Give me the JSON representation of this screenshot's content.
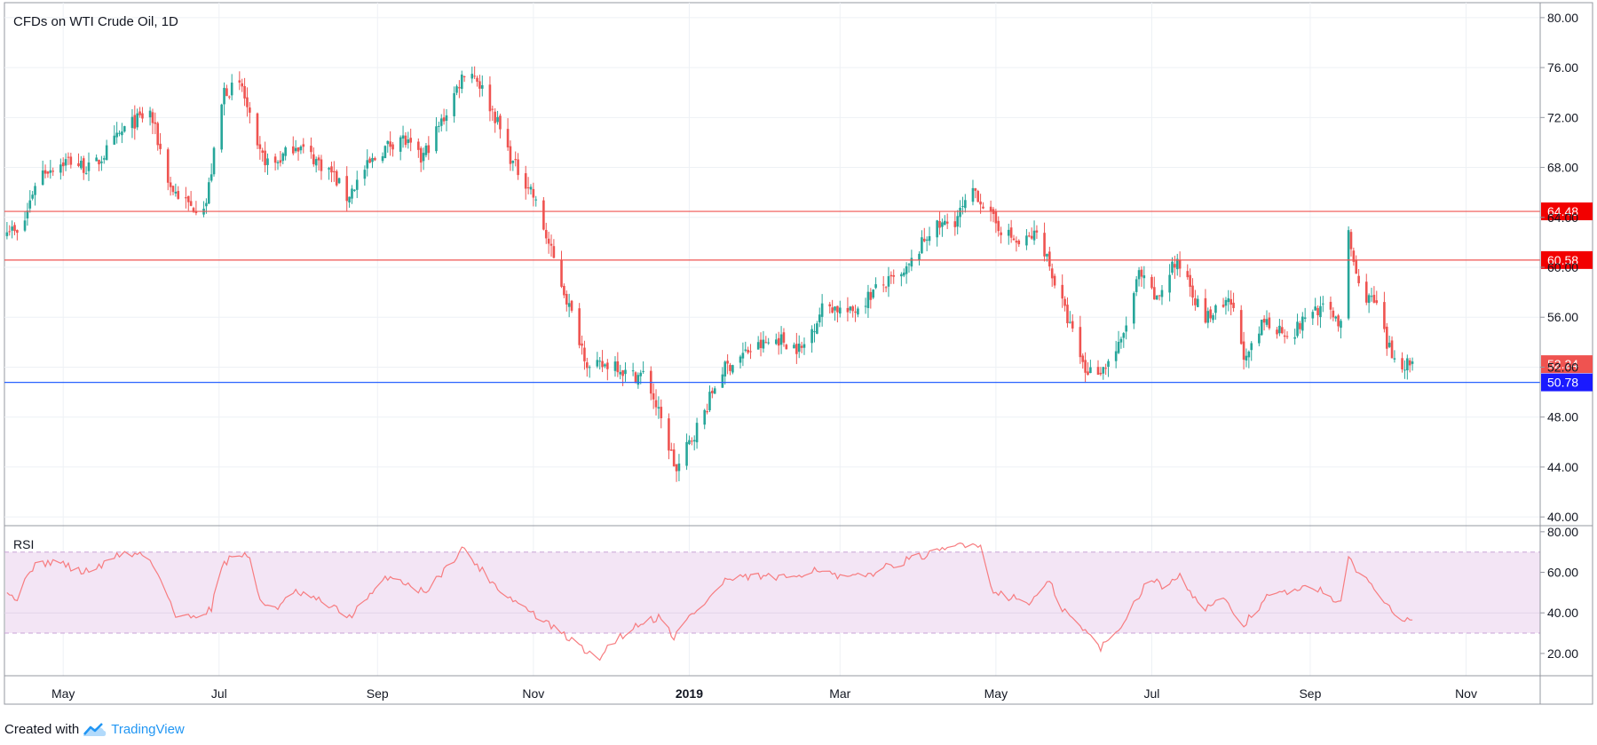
{
  "footer": {
    "created_with": "Created with",
    "brand": "TradingView",
    "logo_icon": "tradingview-logo-icon"
  },
  "colors": {
    "up": "#26a69a",
    "down": "#ef5350",
    "resistance": "#ef5350",
    "support": "#2962ff",
    "rsi_line": "#f77c80",
    "rsi_band": "#f3e5f5",
    "grid": "#eef1f5",
    "axis_text": "#131722"
  },
  "chart_data": [
    {
      "type": "candlestick",
      "title": "CFDs on WTI Crude Oil, 1D",
      "x_labels": [
        "May",
        "Jul",
        "Sep",
        "Nov",
        "2019",
        "Mar",
        "May",
        "Jul",
        "Sep",
        "Nov"
      ],
      "y_ticks": [
        "80.00",
        "76.00",
        "72.00",
        "68.00",
        "64.00",
        "60.00",
        "56.00",
        "52.00",
        "48.00",
        "44.00",
        "40.00"
      ],
      "ylim": [
        39.3,
        81.2
      ],
      "x_range": [
        "2018-04-08",
        "2019-11-30"
      ],
      "anchors": [
        [
          "2018-04-09",
          63.4
        ],
        [
          "2018-04-14",
          62.3
        ],
        [
          "2018-04-21",
          67.5
        ],
        [
          "2018-05-03",
          68.6
        ],
        [
          "2018-05-12",
          67.8
        ],
        [
          "2018-05-26",
          71.3
        ],
        [
          "2018-06-04",
          72.4
        ],
        [
          "2018-06-12",
          66.4
        ],
        [
          "2018-06-20",
          64.8
        ],
        [
          "2018-06-26",
          65.2
        ],
        [
          "2018-07-03",
          74.2
        ],
        [
          "2018-07-10",
          74.4
        ],
        [
          "2018-07-16",
          69.2
        ],
        [
          "2018-07-22",
          68.1
        ],
        [
          "2018-07-31",
          69.9
        ],
        [
          "2018-08-06",
          68.9
        ],
        [
          "2018-08-14",
          67.6
        ],
        [
          "2018-08-20",
          65.6
        ],
        [
          "2018-08-27",
          67.8
        ],
        [
          "2018-09-03",
          69.4
        ],
        [
          "2018-09-10",
          70.5
        ],
        [
          "2018-09-18",
          68.6
        ],
        [
          "2018-09-27",
          72.0
        ],
        [
          "2018-10-06",
          76.2
        ],
        [
          "2018-10-10",
          75.1
        ],
        [
          "2018-10-17",
          72.1
        ],
        [
          "2018-10-24",
          68.3
        ],
        [
          "2018-10-31",
          66.3
        ],
        [
          "2018-11-08",
          61.2
        ],
        [
          "2018-11-16",
          56.2
        ],
        [
          "2018-11-23",
          51.8
        ],
        [
          "2018-12-03",
          52.4
        ],
        [
          "2018-12-08",
          51.3
        ],
        [
          "2018-12-15",
          51.4
        ],
        [
          "2018-12-23",
          46.4
        ],
        [
          "2018-12-27",
          43.6
        ],
        [
          "2018-12-31",
          45.5
        ],
        [
          "2019-01-07",
          48.4
        ],
        [
          "2019-01-13",
          51.6
        ],
        [
          "2019-01-24",
          53.3
        ],
        [
          "2019-02-05",
          54.3
        ],
        [
          "2019-02-14",
          53.4
        ],
        [
          "2019-02-23",
          57.1
        ],
        [
          "2019-03-05",
          56.3
        ],
        [
          "2019-03-16",
          58.4
        ],
        [
          "2019-03-26",
          59.3
        ],
        [
          "2019-04-05",
          62.9
        ],
        [
          "2019-04-15",
          63.8
        ],
        [
          "2019-04-23",
          66.1
        ],
        [
          "2019-04-30",
          63.7
        ],
        [
          "2019-05-10",
          61.8
        ],
        [
          "2019-05-18",
          62.8
        ],
        [
          "2019-05-24",
          58.8
        ],
        [
          "2019-06-01",
          54.1
        ],
        [
          "2019-06-05",
          51.7
        ],
        [
          "2019-06-12",
          51.9
        ],
        [
          "2019-06-19",
          53.9
        ],
        [
          "2019-06-26",
          59.4
        ],
        [
          "2019-07-03",
          57.3
        ],
        [
          "2019-07-09",
          60.2
        ],
        [
          "2019-07-14",
          59.9
        ],
        [
          "2019-07-21",
          55.8
        ],
        [
          "2019-08-01",
          57.1
        ],
        [
          "2019-08-07",
          52.4
        ],
        [
          "2019-08-14",
          55.7
        ],
        [
          "2019-08-25",
          54.6
        ],
        [
          "2019-09-02",
          56.7
        ],
        [
          "2019-09-10",
          56.4
        ],
        [
          "2019-09-14",
          54.9
        ],
        [
          "2019-09-16",
          62.5
        ],
        [
          "2019-09-20",
          58.4
        ],
        [
          "2019-09-27",
          56.9
        ],
        [
          "2019-10-01",
          53.7
        ],
        [
          "2019-10-05",
          52.4
        ],
        [
          "2019-10-11",
          52.3
        ]
      ],
      "price_lines": [
        {
          "value": 64.48,
          "label": "64.48",
          "kind": "resistance"
        },
        {
          "value": 60.58,
          "label": "60.58",
          "kind": "resistance"
        },
        {
          "value": 50.78,
          "label": "50.78",
          "kind": "support"
        },
        {
          "value": 52.24,
          "label": "52.24",
          "kind": "last-price"
        }
      ]
    },
    {
      "type": "line",
      "title": "RSI",
      "y_ticks": [
        "80.00",
        "60.00",
        "40.00",
        "20.00"
      ],
      "ylim": [
        9,
        83
      ],
      "band": [
        30,
        70
      ],
      "middle_line": 40,
      "anchors": [
        [
          "2018-04-09",
          52
        ],
        [
          "2018-04-13",
          46
        ],
        [
          "2018-04-18",
          62
        ],
        [
          "2018-04-28",
          66
        ],
        [
          "2018-05-08",
          60
        ],
        [
          "2018-05-16",
          63
        ],
        [
          "2018-05-22",
          69
        ],
        [
          "2018-06-02",
          69
        ],
        [
          "2018-06-09",
          56
        ],
        [
          "2018-06-14",
          38
        ],
        [
          "2018-06-20",
          38
        ],
        [
          "2018-06-28",
          42
        ],
        [
          "2018-07-02",
          64
        ],
        [
          "2018-07-08",
          69
        ],
        [
          "2018-07-13",
          68
        ],
        [
          "2018-07-17",
          45
        ],
        [
          "2018-07-24",
          43
        ],
        [
          "2018-07-31",
          50
        ],
        [
          "2018-08-07",
          47
        ],
        [
          "2018-08-14",
          43
        ],
        [
          "2018-08-21",
          38
        ],
        [
          "2018-08-29",
          48
        ],
        [
          "2018-09-05",
          58
        ],
        [
          "2018-09-12",
          55
        ],
        [
          "2018-09-19",
          50
        ],
        [
          "2018-09-28",
          62
        ],
        [
          "2018-10-04",
          72
        ],
        [
          "2018-10-11",
          62
        ],
        [
          "2018-10-20",
          50
        ],
        [
          "2018-10-27",
          44
        ],
        [
          "2018-11-05",
          36
        ],
        [
          "2018-11-14",
          28
        ],
        [
          "2018-11-21",
          22
        ],
        [
          "2018-11-26",
          16
        ],
        [
          "2018-12-01",
          25
        ],
        [
          "2018-12-07",
          30
        ],
        [
          "2018-12-14",
          36
        ],
        [
          "2018-12-21",
          38
        ],
        [
          "2018-12-26",
          28
        ],
        [
          "2019-01-01",
          38
        ],
        [
          "2019-01-08",
          46
        ],
        [
          "2019-01-15",
          56
        ],
        [
          "2019-01-28",
          58
        ],
        [
          "2019-02-08",
          57
        ],
        [
          "2019-02-20",
          62
        ],
        [
          "2019-03-01",
          57
        ],
        [
          "2019-03-10",
          58
        ],
        [
          "2019-03-20",
          63
        ],
        [
          "2019-03-30",
          67
        ],
        [
          "2019-04-09",
          70
        ],
        [
          "2019-04-17",
          74
        ],
        [
          "2019-04-25",
          74
        ],
        [
          "2019-04-29",
          52
        ],
        [
          "2019-05-06",
          48
        ],
        [
          "2019-05-14",
          45
        ],
        [
          "2019-05-22",
          55
        ],
        [
          "2019-05-27",
          42
        ],
        [
          "2019-06-04",
          32
        ],
        [
          "2019-06-11",
          23
        ],
        [
          "2019-06-16",
          28
        ],
        [
          "2019-06-22",
          40
        ],
        [
          "2019-06-30",
          58
        ],
        [
          "2019-07-06",
          52
        ],
        [
          "2019-07-12",
          60
        ],
        [
          "2019-07-20",
          42
        ],
        [
          "2019-07-29",
          46
        ],
        [
          "2019-08-06",
          34
        ],
        [
          "2019-08-15",
          48
        ],
        [
          "2019-08-22",
          50
        ],
        [
          "2019-08-31",
          52
        ],
        [
          "2019-09-05",
          52
        ],
        [
          "2019-09-13",
          44
        ],
        [
          "2019-09-16",
          66
        ],
        [
          "2019-09-24",
          55
        ],
        [
          "2019-10-01",
          45
        ],
        [
          "2019-10-07",
          37
        ],
        [
          "2019-10-11",
          38
        ]
      ]
    }
  ]
}
